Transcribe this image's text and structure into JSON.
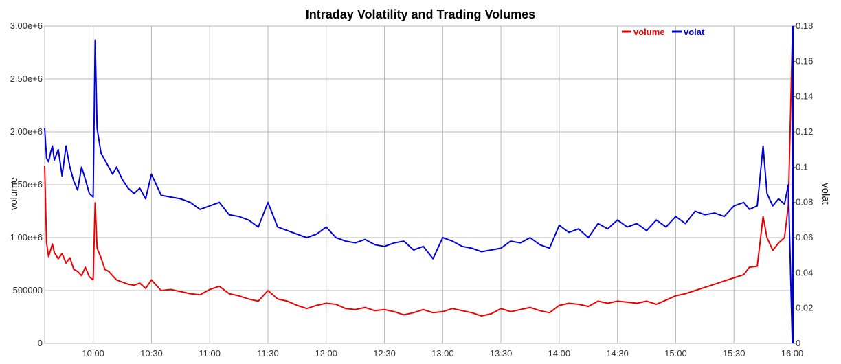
{
  "chart_data": {
    "type": "line",
    "title": "Intraday Volatility and Trading Volumes",
    "xlabel": "",
    "ylabel_left": "volume",
    "ylabel_right": "volat",
    "x_range": [
      "09:35",
      "16:00"
    ],
    "x_ticks": [
      "10:00",
      "10:30",
      "11:00",
      "11:30",
      "12:00",
      "12:30",
      "13:00",
      "13:30",
      "14:00",
      "14:30",
      "15:00",
      "15:30",
      "16:00"
    ],
    "y_left_range": [
      0,
      3000000
    ],
    "y_left_ticks": [
      "0",
      "500000",
      "1.00e+6",
      "1.50e+6",
      "2.00e+6",
      "2.50e+6",
      "3.00e+6"
    ],
    "y_right_range": [
      0,
      0.18
    ],
    "y_right_ticks": [
      "0",
      "0.02",
      "0.04",
      "0.06",
      "0.08",
      "0.1",
      "0.12",
      "0.14",
      "0.16",
      "0.18"
    ],
    "grid": true,
    "legend_position": "top-right",
    "series": [
      {
        "name": "volume",
        "axis": "left",
        "color": "#ee0000",
        "points": [
          [
            "09:35",
            1680000
          ],
          [
            "09:36",
            950000
          ],
          [
            "09:37",
            820000
          ],
          [
            "09:38",
            880000
          ],
          [
            "09:39",
            940000
          ],
          [
            "09:40",
            860000
          ],
          [
            "09:42",
            800000
          ],
          [
            "09:44",
            850000
          ],
          [
            "09:46",
            760000
          ],
          [
            "09:48",
            810000
          ],
          [
            "09:50",
            700000
          ],
          [
            "09:52",
            680000
          ],
          [
            "09:54",
            640000
          ],
          [
            "09:56",
            720000
          ],
          [
            "09:58",
            630000
          ],
          [
            "10:00",
            600000
          ],
          [
            "10:01",
            1330000
          ],
          [
            "10:02",
            900000
          ],
          [
            "10:04",
            810000
          ],
          [
            "10:06",
            700000
          ],
          [
            "10:08",
            680000
          ],
          [
            "10:10",
            640000
          ],
          [
            "10:12",
            600000
          ],
          [
            "10:15",
            580000
          ],
          [
            "10:18",
            560000
          ],
          [
            "10:21",
            550000
          ],
          [
            "10:24",
            570000
          ],
          [
            "10:27",
            520000
          ],
          [
            "10:30",
            600000
          ],
          [
            "10:35",
            500000
          ],
          [
            "10:40",
            510000
          ],
          [
            "10:45",
            490000
          ],
          [
            "10:50",
            470000
          ],
          [
            "10:55",
            460000
          ],
          [
            "11:00",
            510000
          ],
          [
            "11:05",
            540000
          ],
          [
            "11:10",
            470000
          ],
          [
            "11:15",
            450000
          ],
          [
            "11:20",
            420000
          ],
          [
            "11:25",
            400000
          ],
          [
            "11:30",
            500000
          ],
          [
            "11:35",
            420000
          ],
          [
            "11:40",
            400000
          ],
          [
            "11:45",
            360000
          ],
          [
            "11:50",
            330000
          ],
          [
            "11:55",
            360000
          ],
          [
            "12:00",
            380000
          ],
          [
            "12:05",
            370000
          ],
          [
            "12:10",
            330000
          ],
          [
            "12:15",
            320000
          ],
          [
            "12:20",
            340000
          ],
          [
            "12:25",
            310000
          ],
          [
            "12:30",
            320000
          ],
          [
            "12:35",
            300000
          ],
          [
            "12:40",
            270000
          ],
          [
            "12:45",
            290000
          ],
          [
            "12:50",
            320000
          ],
          [
            "12:55",
            290000
          ],
          [
            "13:00",
            300000
          ],
          [
            "13:05",
            330000
          ],
          [
            "13:10",
            310000
          ],
          [
            "13:15",
            290000
          ],
          [
            "13:20",
            260000
          ],
          [
            "13:25",
            280000
          ],
          [
            "13:30",
            330000
          ],
          [
            "13:35",
            300000
          ],
          [
            "13:40",
            320000
          ],
          [
            "13:45",
            340000
          ],
          [
            "13:50",
            310000
          ],
          [
            "13:55",
            290000
          ],
          [
            "14:00",
            360000
          ],
          [
            "14:05",
            380000
          ],
          [
            "14:10",
            370000
          ],
          [
            "14:15",
            350000
          ],
          [
            "14:20",
            400000
          ],
          [
            "14:25",
            380000
          ],
          [
            "14:30",
            400000
          ],
          [
            "14:35",
            390000
          ],
          [
            "14:40",
            380000
          ],
          [
            "14:45",
            400000
          ],
          [
            "14:50",
            370000
          ],
          [
            "14:55",
            410000
          ],
          [
            "15:00",
            450000
          ],
          [
            "15:05",
            470000
          ],
          [
            "15:10",
            500000
          ],
          [
            "15:15",
            530000
          ],
          [
            "15:20",
            560000
          ],
          [
            "15:25",
            590000
          ],
          [
            "15:30",
            620000
          ],
          [
            "15:35",
            650000
          ],
          [
            "15:38",
            720000
          ],
          [
            "15:42",
            730000
          ],
          [
            "15:45",
            1200000
          ],
          [
            "15:47",
            1000000
          ],
          [
            "15:50",
            880000
          ],
          [
            "15:53",
            950000
          ],
          [
            "15:56",
            1000000
          ],
          [
            "15:58",
            1300000
          ],
          [
            "16:00",
            2850000
          ]
        ]
      },
      {
        "name": "volat",
        "axis": "right",
        "color": "#0000dd",
        "points": [
          [
            "09:35",
            0.122
          ],
          [
            "09:36",
            0.105
          ],
          [
            "09:37",
            0.103
          ],
          [
            "09:38",
            0.108
          ],
          [
            "09:39",
            0.112
          ],
          [
            "09:40",
            0.104
          ],
          [
            "09:42",
            0.11
          ],
          [
            "09:44",
            0.095
          ],
          [
            "09:46",
            0.112
          ],
          [
            "09:48",
            0.1
          ],
          [
            "09:50",
            0.092
          ],
          [
            "09:52",
            0.087
          ],
          [
            "09:54",
            0.1
          ],
          [
            "09:56",
            0.093
          ],
          [
            "09:58",
            0.085
          ],
          [
            "10:00",
            0.083
          ],
          [
            "10:01",
            0.172
          ],
          [
            "10:02",
            0.122
          ],
          [
            "10:04",
            0.108
          ],
          [
            "10:06",
            0.104
          ],
          [
            "10:08",
            0.1
          ],
          [
            "10:10",
            0.096
          ],
          [
            "10:12",
            0.1
          ],
          [
            "10:15",
            0.093
          ],
          [
            "10:18",
            0.088
          ],
          [
            "10:21",
            0.085
          ],
          [
            "10:24",
            0.088
          ],
          [
            "10:27",
            0.082
          ],
          [
            "10:30",
            0.096
          ],
          [
            "10:35",
            0.084
          ],
          [
            "10:40",
            0.083
          ],
          [
            "10:45",
            0.082
          ],
          [
            "10:50",
            0.08
          ],
          [
            "10:55",
            0.076
          ],
          [
            "11:00",
            0.078
          ],
          [
            "11:05",
            0.08
          ],
          [
            "11:10",
            0.073
          ],
          [
            "11:15",
            0.072
          ],
          [
            "11:20",
            0.07
          ],
          [
            "11:25",
            0.066
          ],
          [
            "11:30",
            0.08
          ],
          [
            "11:35",
            0.066
          ],
          [
            "11:40",
            0.064
          ],
          [
            "11:45",
            0.062
          ],
          [
            "11:50",
            0.06
          ],
          [
            "11:55",
            0.062
          ],
          [
            "12:00",
            0.066
          ],
          [
            "12:05",
            0.06
          ],
          [
            "12:10",
            0.058
          ],
          [
            "12:15",
            0.057
          ],
          [
            "12:20",
            0.059
          ],
          [
            "12:25",
            0.056
          ],
          [
            "12:30",
            0.055
          ],
          [
            "12:35",
            0.057
          ],
          [
            "12:40",
            0.058
          ],
          [
            "12:45",
            0.053
          ],
          [
            "12:50",
            0.055
          ],
          [
            "12:55",
            0.048
          ],
          [
            "13:00",
            0.06
          ],
          [
            "13:05",
            0.058
          ],
          [
            "13:10",
            0.055
          ],
          [
            "13:15",
            0.054
          ],
          [
            "13:20",
            0.052
          ],
          [
            "13:25",
            0.053
          ],
          [
            "13:30",
            0.054
          ],
          [
            "13:35",
            0.058
          ],
          [
            "13:40",
            0.057
          ],
          [
            "13:45",
            0.06
          ],
          [
            "13:50",
            0.056
          ],
          [
            "13:55",
            0.054
          ],
          [
            "14:00",
            0.067
          ],
          [
            "14:05",
            0.063
          ],
          [
            "14:10",
            0.065
          ],
          [
            "14:15",
            0.06
          ],
          [
            "14:20",
            0.068
          ],
          [
            "14:25",
            0.065
          ],
          [
            "14:30",
            0.07
          ],
          [
            "14:35",
            0.066
          ],
          [
            "14:40",
            0.068
          ],
          [
            "14:45",
            0.064
          ],
          [
            "14:50",
            0.07
          ],
          [
            "14:55",
            0.066
          ],
          [
            "15:00",
            0.072
          ],
          [
            "15:05",
            0.068
          ],
          [
            "15:10",
            0.075
          ],
          [
            "15:15",
            0.073
          ],
          [
            "15:20",
            0.074
          ],
          [
            "15:25",
            0.072
          ],
          [
            "15:30",
            0.078
          ],
          [
            "15:35",
            0.08
          ],
          [
            "15:38",
            0.076
          ],
          [
            "15:42",
            0.078
          ],
          [
            "15:45",
            0.112
          ],
          [
            "15:47",
            0.085
          ],
          [
            "15:50",
            0.078
          ],
          [
            "15:53",
            0.082
          ],
          [
            "15:56",
            0.079
          ],
          [
            "15:58",
            0.09
          ],
          [
            "16:00",
            0.003
          ]
        ]
      }
    ]
  }
}
